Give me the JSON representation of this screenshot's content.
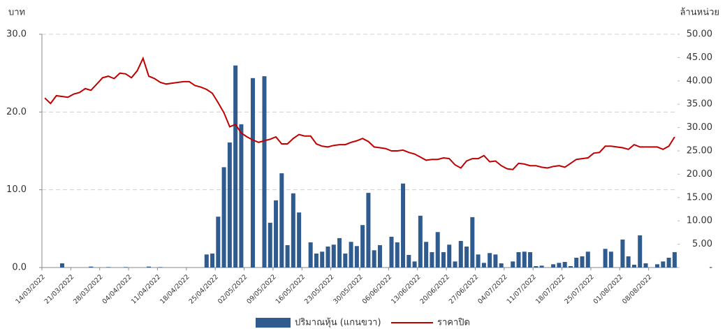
{
  "chart_data": {
    "type": "combo",
    "y_label": "บาท",
    "y2_label": "ล้านหน่วย",
    "categories": [
      "14/03/2022",
      null,
      null,
      null,
      null,
      "21/03/2022",
      null,
      null,
      null,
      null,
      "28/03/2022",
      null,
      null,
      null,
      null,
      "04/04/2022",
      null,
      null,
      null,
      null,
      "11/04/2022",
      null,
      null,
      null,
      null,
      "18/04/2022",
      null,
      null,
      null,
      null,
      "25/04/2022",
      null,
      null,
      null,
      null,
      "02/05/2022",
      null,
      null,
      null,
      null,
      "09/05/2022",
      null,
      null,
      null,
      null,
      "16/05/2022",
      null,
      null,
      null,
      null,
      "23/05/2022",
      null,
      null,
      null,
      null,
      "30/05/2022",
      null,
      null,
      null,
      null,
      "06/06/2022",
      null,
      null,
      null,
      null,
      "13/06/2022",
      null,
      null,
      null,
      null,
      "20/06/2022",
      null,
      null,
      null,
      null,
      "27/06/2022",
      null,
      null,
      null,
      null,
      "04/07/2022",
      null,
      null,
      null,
      null,
      "11/07/2022",
      null,
      null,
      null,
      null,
      "18/07/2022",
      null,
      null,
      null,
      null,
      "25/07/2022",
      null,
      null,
      null,
      null,
      "01/08/2022",
      null,
      null,
      null,
      null,
      "08/08/2022",
      null,
      null,
      null,
      null
    ],
    "series": [
      {
        "name": "ปริมาณหุ้น (แกนขวา)",
        "type": "bar",
        "axis": "y2",
        "color": "#2f5b8f",
        "values": [
          0,
          0,
          0,
          0.9,
          0,
          0,
          0,
          0,
          0.2,
          0,
          0,
          0.1,
          0,
          0,
          0.1,
          0,
          0,
          0,
          0.2,
          0,
          0.1,
          0,
          0,
          0,
          0,
          0,
          0,
          0,
          2.8,
          3.0,
          10.9,
          21.5,
          26.8,
          43.3,
          30.7,
          0,
          40.6,
          0,
          41.0,
          9.6,
          14.4,
          20.2,
          4.8,
          15.9,
          11.8,
          0,
          5.4,
          3.0,
          3.4,
          4.5,
          4.9,
          6.3,
          3.0,
          5.5,
          4.6,
          9.1,
          16.0,
          3.7,
          4.8,
          0,
          6.6,
          5.4,
          18.0,
          2.7,
          1.3,
          11.1,
          5.5,
          3.3,
          7.6,
          3.3,
          4.9,
          1.3,
          5.7,
          4.5,
          10.8,
          2.8,
          1.0,
          3.1,
          2.8,
          0.9,
          0,
          1.3,
          3.3,
          3.4,
          3.3,
          0.3,
          0.4,
          0,
          0.7,
          1.0,
          1.2,
          0.3,
          2.1,
          2.4,
          3.4,
          0,
          0,
          4.0,
          3.4,
          0,
          6.0,
          2.4,
          0.6,
          6.9,
          0.9,
          0,
          0.7,
          1.3,
          2.1,
          3.3
        ]
      },
      {
        "name": "ราคาปิด",
        "type": "line",
        "axis": "y",
        "color": "#c00000",
        "values": [
          21.8,
          21.1,
          22.1,
          22.0,
          21.9,
          22.3,
          22.5,
          23.0,
          22.8,
          23.6,
          24.4,
          24.6,
          24.3,
          25.0,
          24.9,
          24.4,
          25.3,
          26.9,
          24.6,
          24.3,
          23.8,
          23.6,
          23.7,
          23.8,
          23.9,
          23.9,
          23.4,
          23.2,
          22.9,
          22.4,
          21.2,
          19.9,
          18.1,
          18.4,
          17.3,
          16.8,
          16.4,
          16.1,
          16.3,
          16.5,
          16.8,
          15.9,
          15.9,
          16.6,
          17.1,
          16.9,
          16.9,
          15.9,
          15.6,
          15.5,
          15.7,
          15.8,
          15.8,
          16.1,
          16.3,
          16.6,
          16.2,
          15.5,
          15.4,
          15.3,
          15.0,
          15.0,
          15.1,
          14.8,
          14.6,
          14.2,
          13.8,
          13.9,
          13.9,
          14.1,
          14.0,
          13.2,
          12.8,
          13.7,
          14.0,
          14.0,
          14.4,
          13.6,
          13.7,
          13.1,
          12.7,
          12.6,
          13.4,
          13.3,
          13.1,
          13.1,
          12.9,
          12.8,
          13.0,
          13.1,
          12.9,
          13.4,
          13.9,
          14.0,
          14.1,
          14.7,
          14.8,
          15.6,
          15.6,
          15.5,
          15.4,
          15.2,
          15.8,
          15.5,
          15.5,
          15.5,
          15.5,
          15.2,
          15.6,
          16.8
        ]
      }
    ],
    "ylim": [
      0,
      30
    ],
    "yticks": [
      {
        "value": 0,
        "label": "0.0"
      },
      {
        "value": 10,
        "label": "10.0"
      },
      {
        "value": 20,
        "label": "20.0"
      },
      {
        "value": 30,
        "label": "30.0"
      }
    ],
    "y2lim": [
      0,
      50
    ],
    "y2ticks": [
      {
        "value": 0,
        "label": "-"
      },
      {
        "value": 5,
        "label": "5.00"
      },
      {
        "value": 10,
        "label": "10.00"
      },
      {
        "value": 15,
        "label": "15.00"
      },
      {
        "value": 20,
        "label": "20.00"
      },
      {
        "value": 25,
        "label": "25.00"
      },
      {
        "value": 30,
        "label": "30.00"
      },
      {
        "value": 35,
        "label": "35.00"
      },
      {
        "value": 40,
        "label": "40.00"
      },
      {
        "value": 45,
        "label": "45.00"
      },
      {
        "value": 50,
        "label": "50.00"
      }
    ],
    "grid": true,
    "legend": "bottom"
  }
}
